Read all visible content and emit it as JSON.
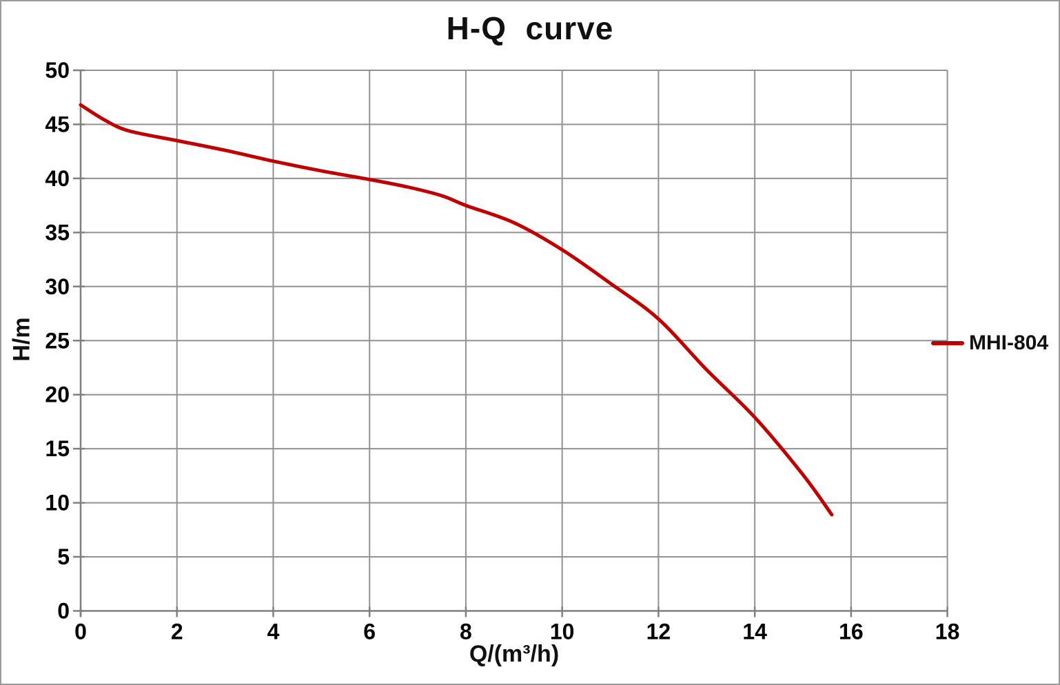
{
  "window": {
    "background": "#FFFFFF",
    "border_color": "#9A9A9A"
  },
  "chart_data": {
    "type": "line",
    "title": "H-Q  curve",
    "xlabel": "Q/(m³/h)",
    "ylabel": "H/m",
    "xlim": [
      0,
      18
    ],
    "ylim": [
      0,
      50
    ],
    "x_ticks": [
      0,
      2,
      4,
      6,
      8,
      10,
      12,
      14,
      16,
      18
    ],
    "y_ticks": [
      0,
      5,
      10,
      15,
      20,
      25,
      30,
      35,
      40,
      45,
      50
    ],
    "grid": true,
    "gridline_color": "#919191",
    "axis_color": "#7F7F7F",
    "tick_label_color": "#000000",
    "legend_position": "right-outside-middle",
    "series": [
      {
        "name": "MHI-804",
        "color": "#C00000",
        "line_width": 5,
        "x": [
          0,
          0.5,
          1,
          2,
          3,
          4,
          5,
          6,
          6.8,
          7.5,
          8,
          9,
          10,
          11,
          12,
          13,
          14,
          15,
          15.6
        ],
        "y": [
          46.8,
          45.4,
          44.4,
          43.5,
          42.6,
          41.6,
          40.7,
          39.9,
          39.2,
          38.4,
          37.5,
          35.9,
          33.4,
          30.3,
          27.0,
          22.3,
          17.9,
          12.6,
          8.9
        ]
      }
    ]
  }
}
